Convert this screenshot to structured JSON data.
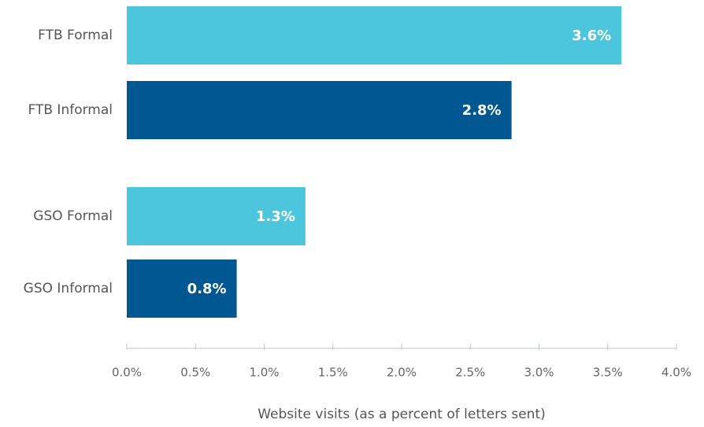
{
  "chart_data": {
    "type": "bar",
    "orientation": "horizontal",
    "categories": [
      "FTB Formal",
      "FTB Informal",
      "GSO Formal",
      "GSO Informal"
    ],
    "values": [
      3.6,
      2.8,
      1.3,
      0.8
    ],
    "value_labels": [
      "3.6%",
      "2.8%",
      "1.3%",
      "0.8%"
    ],
    "colors": [
      "#4bc6dc",
      "#005791",
      "#4bc6dc",
      "#005791"
    ],
    "xlim": [
      0,
      4
    ],
    "xticks": [
      {
        "value": 0,
        "label": "0.0%"
      },
      {
        "value": 0.5,
        "label": "0.5%"
      },
      {
        "value": 1,
        "label": "1.0%"
      },
      {
        "value": 1.5,
        "label": "1.5%"
      },
      {
        "value": 2,
        "label": "2.0%"
      },
      {
        "value": 2.5,
        "label": "2.5%"
      },
      {
        "value": 3,
        "label": "3.0%"
      },
      {
        "value": 3.5,
        "label": "3.5%"
      },
      {
        "value": 4,
        "label": "4.0%"
      }
    ],
    "x_label": "Website visits (as a percent of letters sent)"
  }
}
